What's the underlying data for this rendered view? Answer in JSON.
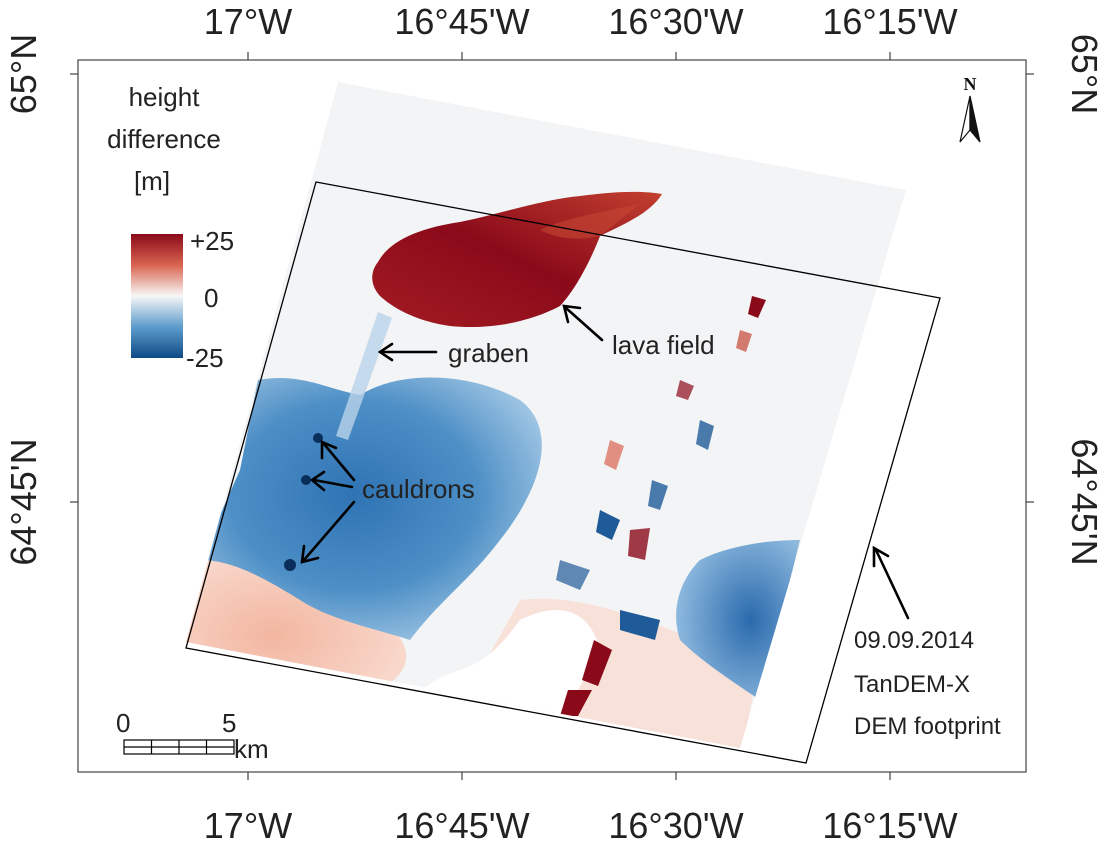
{
  "axes": {
    "top_ticks": [
      "17°W",
      "16°45'W",
      "16°30'W",
      "16°15'W"
    ],
    "bottom_ticks": [
      "17°W",
      "16°45'W",
      "16°30'W",
      "16°15'W"
    ],
    "left_ticks": [
      "65°N",
      "64°45'N"
    ],
    "right_ticks": [
      "65°N",
      "64°45'N"
    ]
  },
  "legend": {
    "title_lines": [
      "height",
      "difference",
      "[m]"
    ],
    "max_label": "+25",
    "mid_label": "0",
    "min_label": "-25",
    "colors": {
      "high": "#8b0a1a",
      "mid": "#f7f7f7",
      "low": "#0d4a85"
    }
  },
  "annotations": {
    "graben": "graben",
    "lava_field": "lava field",
    "cauldrons": "cauldrons",
    "footprint_lines": [
      "09.09.2014",
      "TanDEM-X",
      "DEM footprint"
    ]
  },
  "scalebar": {
    "start": "0",
    "end": "5",
    "unit": "km"
  },
  "north_arrow": {
    "label": "N",
    "icon": "north-arrow-icon"
  }
}
